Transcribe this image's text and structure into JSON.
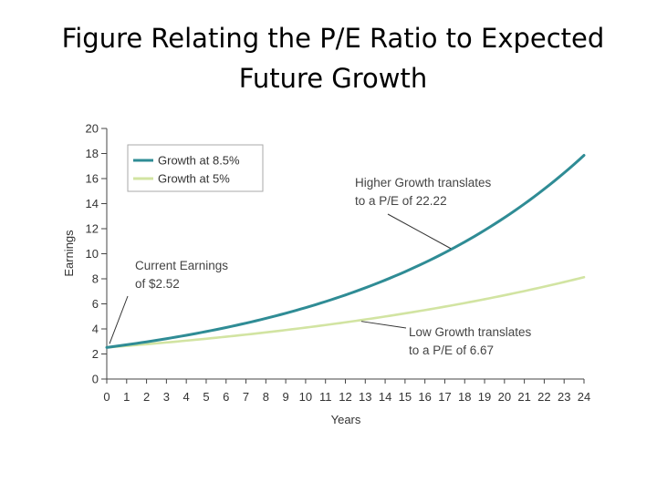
{
  "slide": {
    "title_line1": "Figure Relating the P/E Ratio to Expected",
    "title_line2": "Future Growth"
  },
  "chart_data": {
    "type": "line",
    "title": "",
    "xlabel": "Years",
    "ylabel": "Earnings",
    "xlim": [
      0,
      24
    ],
    "ylim": [
      0,
      20
    ],
    "x_ticks": [
      "0",
      "1",
      "2",
      "3",
      "4",
      "5",
      "6",
      "7",
      "8",
      "9",
      "10",
      "11",
      "12",
      "13",
      "14",
      "15",
      "16",
      "17",
      "18",
      "19",
      "20",
      "21",
      "22",
      "23",
      "24"
    ],
    "y_ticks": [
      "0",
      "2",
      "4",
      "6",
      "8",
      "10",
      "12",
      "14",
      "16",
      "18",
      "20"
    ],
    "grid": false,
    "legend_position": "top-left",
    "series": [
      {
        "name": "Growth at 8.5%",
        "color": "#2f8c95",
        "start": 2.52,
        "rate": 0.085,
        "x": [
          0,
          1,
          2,
          3,
          4,
          5,
          6,
          7,
          8,
          9,
          10,
          11,
          12,
          13,
          14,
          15,
          16,
          17,
          18,
          19,
          20,
          21,
          22,
          23,
          24
        ],
        "values": [
          2.52,
          2.73,
          2.97,
          3.22,
          3.49,
          3.79,
          4.11,
          4.46,
          4.84,
          5.25,
          5.7,
          6.18,
          6.71,
          7.28,
          7.9,
          8.57,
          9.3,
          10.09,
          10.94,
          11.87,
          12.88,
          13.98,
          15.16,
          16.45,
          17.85
        ]
      },
      {
        "name": "Growth at 5%",
        "color": "#d2e4a2",
        "start": 2.52,
        "rate": 0.05,
        "x": [
          0,
          1,
          2,
          3,
          4,
          5,
          6,
          7,
          8,
          9,
          10,
          11,
          12,
          13,
          14,
          15,
          16,
          17,
          18,
          19,
          20,
          21,
          22,
          23,
          24
        ],
        "values": [
          2.52,
          2.65,
          2.78,
          2.92,
          3.06,
          3.22,
          3.38,
          3.55,
          3.72,
          3.91,
          4.1,
          4.31,
          4.53,
          4.75,
          4.99,
          5.24,
          5.5,
          5.78,
          6.06,
          6.37,
          6.69,
          7.02,
          7.37,
          7.74,
          8.13
        ]
      }
    ],
    "annotations": [
      {
        "id": "current",
        "lines": [
          "Current Earnings",
          "of $2.52"
        ],
        "point": {
          "x": 0,
          "y": 2.52
        }
      },
      {
        "id": "high",
        "lines": [
          "Higher Growth translates",
          "to a P/E of 22.22"
        ],
        "point": {
          "x": 17.3,
          "y": 10.2
        }
      },
      {
        "id": "low",
        "lines": [
          "Low Growth translates",
          "to a P/E of 6.67"
        ],
        "point": {
          "x": 12.8,
          "y": 4.75
        }
      }
    ]
  }
}
